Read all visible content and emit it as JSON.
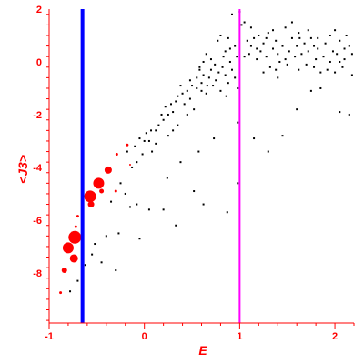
{
  "chart_data": {
    "type": "scatter",
    "xlabel": "E",
    "ylabel": "<J3>",
    "xlim": [
      -1.0,
      2.2
    ],
    "ylim": [
      -9.9,
      2.0
    ],
    "x_ticks": [
      -1,
      0,
      1,
      2
    ],
    "y_ticks": [
      2,
      0,
      -2,
      -4,
      -6,
      -8
    ],
    "grid": false,
    "colors": {
      "axis": "#ff0000",
      "text": "#ff0000",
      "black_points": "#000000",
      "red_points": "#ff0000",
      "blue_line": "#0000ff",
      "magenta_line": "#ff00ff"
    },
    "vertical_lines": [
      {
        "x": -0.65,
        "color": "#0000ff"
      },
      {
        "x": 1.0,
        "color": "#ff00ff"
      }
    ],
    "series": [
      {
        "color": "#000000",
        "marker": "small-dot",
        "points": [
          [
            -0.78,
            -8.7
          ],
          [
            -0.7,
            -8.3
          ],
          [
            -0.62,
            -7.7
          ],
          [
            -0.55,
            -7.3
          ],
          [
            -0.3,
            -7.9
          ],
          [
            -0.45,
            -7.6
          ],
          [
            -0.4,
            -6.6
          ],
          [
            -0.27,
            -6.5
          ],
          [
            -0.52,
            -6.9
          ],
          [
            -0.65,
            -7.4
          ],
          [
            -0.15,
            -5.5
          ],
          [
            -0.08,
            -5.4
          ],
          [
            -0.2,
            -5.0
          ],
          [
            -0.35,
            -5.3
          ],
          [
            -0.25,
            -4.6
          ],
          [
            -0.05,
            -6.7
          ],
          [
            0.05,
            -5.6
          ],
          [
            0.2,
            -5.6
          ],
          [
            0.33,
            -6.2
          ],
          [
            0.52,
            -4.9
          ],
          [
            0.62,
            -5.4
          ],
          [
            0.87,
            -5.7
          ],
          [
            0.98,
            -4.6
          ],
          [
            0.24,
            -4.4
          ],
          [
            0.38,
            -3.8
          ],
          [
            0.57,
            -3.4
          ],
          [
            0.73,
            -2.9
          ],
          [
            0.98,
            -2.3
          ],
          [
            1.15,
            -2.9
          ],
          [
            1.3,
            -3.4
          ],
          [
            1.45,
            -2.8
          ],
          [
            1.6,
            -1.8
          ],
          [
            1.75,
            -1.1
          ],
          [
            1.85,
            -1.0
          ],
          [
            2.05,
            -1.9
          ],
          [
            2.15,
            -2.0
          ],
          [
            -0.18,
            -3.4
          ],
          [
            -0.1,
            -3.2
          ],
          [
            -0.05,
            -2.9
          ],
          [
            0.0,
            -3.0
          ],
          [
            0.05,
            -3.0
          ],
          [
            0.08,
            -3.4
          ],
          [
            0.12,
            -3.1
          ],
          [
            -0.08,
            -3.8
          ],
          [
            -0.13,
            -4.0
          ],
          [
            0.02,
            -2.7
          ],
          [
            0.07,
            -2.6
          ],
          [
            0.15,
            -2.4
          ],
          [
            0.2,
            -2.2
          ],
          [
            0.25,
            -2.0
          ],
          [
            0.18,
            -2.0
          ],
          [
            0.3,
            -1.9
          ],
          [
            0.22,
            -1.7
          ],
          [
            0.28,
            -1.6
          ],
          [
            0.33,
            -1.5
          ],
          [
            0.35,
            -1.3
          ],
          [
            0.4,
            -1.2
          ],
          [
            0.45,
            -1.1
          ],
          [
            0.38,
            -0.9
          ],
          [
            0.42,
            -1.6
          ],
          [
            0.48,
            -1.4
          ],
          [
            0.5,
            -0.9
          ],
          [
            0.55,
            -1.0
          ],
          [
            0.52,
            -1.8
          ],
          [
            0.6,
            -0.8
          ],
          [
            0.62,
            -0.5
          ],
          [
            0.65,
            -1.2
          ],
          [
            0.68,
            -0.6
          ],
          [
            0.7,
            -0.3
          ],
          [
            0.72,
            -0.9
          ],
          [
            0.75,
            -0.7
          ],
          [
            0.78,
            -0.4
          ],
          [
            0.8,
            -1.1
          ],
          [
            0.82,
            -0.2
          ],
          [
            0.85,
            -0.5
          ],
          [
            0.88,
            -0.8
          ],
          [
            0.9,
            0.0
          ],
          [
            0.92,
            -0.3
          ],
          [
            0.95,
            -0.6
          ],
          [
            0.97,
            0.2
          ],
          [
            0.62,
            0.0
          ],
          [
            0.65,
            0.3
          ],
          [
            0.58,
            -0.3
          ],
          [
            0.55,
            -0.6
          ],
          [
            0.58,
            -0.2
          ],
          [
            0.77,
            0.8
          ],
          [
            0.8,
            1.0
          ],
          [
            0.85,
            0.4
          ],
          [
            0.88,
            0.9
          ],
          [
            0.9,
            0.5
          ],
          [
            0.95,
            0.6
          ],
          [
            1.0,
            1.9
          ],
          [
            1.02,
            1.4
          ],
          [
            1.05,
            1.5
          ],
          [
            1.08,
            0.8
          ],
          [
            1.1,
            0.3
          ],
          [
            1.12,
            0.6
          ],
          [
            1.15,
            0.9
          ],
          [
            1.18,
            0.1
          ],
          [
            1.2,
            1.0
          ],
          [
            1.22,
            0.4
          ],
          [
            1.25,
            0.7
          ],
          [
            1.28,
            0.2
          ],
          [
            1.3,
            1.1
          ],
          [
            1.32,
            -0.2
          ],
          [
            1.35,
            0.5
          ],
          [
            1.38,
            0.8
          ],
          [
            1.4,
            0.3
          ],
          [
            1.42,
            0.0
          ],
          [
            1.45,
            0.6
          ],
          [
            1.48,
            1.3
          ],
          [
            1.5,
            -0.1
          ],
          [
            1.52,
            0.4
          ],
          [
            1.55,
            0.9
          ],
          [
            1.58,
            0.2
          ],
          [
            1.6,
            0.6
          ],
          [
            1.62,
            -0.3
          ],
          [
            1.65,
            0.3
          ],
          [
            1.68,
            0.7
          ],
          [
            1.7,
            -0.1
          ],
          [
            1.72,
            0.4
          ],
          [
            1.75,
            0.9
          ],
          [
            1.78,
            -0.2
          ],
          [
            1.8,
            0.1
          ],
          [
            1.82,
            0.5
          ],
          [
            1.85,
            -0.4
          ],
          [
            1.88,
            0.2
          ],
          [
            1.9,
            0.7
          ],
          [
            1.92,
            -0.3
          ],
          [
            1.95,
            0.0
          ],
          [
            1.98,
            0.4
          ],
          [
            2.0,
            -0.4
          ],
          [
            2.02,
            0.3
          ],
          [
            2.05,
            0.8
          ],
          [
            2.08,
            -0.2
          ],
          [
            2.1,
            0.1
          ],
          [
            2.12,
            1.0
          ],
          [
            2.15,
            0.6
          ],
          [
            2.18,
            -0.5
          ],
          [
            2.18,
            0.3
          ],
          [
            1.12,
            1.3
          ],
          [
            1.18,
            0.5
          ],
          [
            1.25,
            -0.4
          ],
          [
            1.35,
            1.2
          ],
          [
            1.48,
            0.1
          ],
          [
            1.55,
            1.5
          ],
          [
            1.63,
            0.9
          ],
          [
            1.72,
            1.2
          ],
          [
            1.82,
            0.9
          ],
          [
            1.95,
            1.0
          ],
          [
            2.05,
            0.0
          ],
          [
            2.1,
            0.5
          ],
          [
            1.4,
            -0.6
          ],
          [
            0.98,
            -1.0
          ],
          [
            0.86,
            -1.3
          ],
          [
            0.45,
            -2.0
          ],
          [
            0.35,
            -2.4
          ],
          [
            0.3,
            -2.6
          ],
          [
            0.12,
            -2.6
          ],
          [
            0.25,
            -2.8
          ],
          [
            -0.02,
            -3.5
          ],
          [
            0.92,
            1.8
          ],
          [
            1.05,
            0.2
          ],
          [
            1.28,
            0.9
          ],
          [
            1.38,
            -0.3
          ],
          [
            1.62,
            1.1
          ],
          [
            1.78,
            0.6
          ],
          [
            2.0,
            1.2
          ],
          [
            0.7,
            0.1
          ],
          [
            0.74,
            -0.1
          ],
          [
            0.83,
            0.2
          ],
          [
            0.6,
            -1.1
          ],
          [
            0.48,
            -0.7
          ],
          [
            0.66,
            -0.9
          ]
        ]
      },
      {
        "color": "#ff0000",
        "marker": "sized-circle",
        "points": [
          {
            "x": -0.88,
            "y": -8.75,
            "r": 1.5
          },
          {
            "x": -0.84,
            "y": -7.9,
            "r": 3
          },
          {
            "x": -0.8,
            "y": -7.05,
            "r": 6
          },
          {
            "x": -0.73,
            "y": -6.65,
            "r": 7
          },
          {
            "x": -0.74,
            "y": -7.45,
            "r": 4.5
          },
          {
            "x": -0.72,
            "y": -6.25,
            "r": 1.5
          },
          {
            "x": -0.7,
            "y": -5.85,
            "r": 1.5
          },
          {
            "x": -0.65,
            "y": -5.5,
            "r": 1.5
          },
          {
            "x": -0.57,
            "y": -5.1,
            "r": 6.5
          },
          {
            "x": -0.56,
            "y": -5.4,
            "r": 3.5
          },
          {
            "x": -0.48,
            "y": -4.6,
            "r": 6
          },
          {
            "x": -0.45,
            "y": -4.9,
            "r": 2.5
          },
          {
            "x": -0.38,
            "y": -4.1,
            "r": 4
          },
          {
            "x": -0.3,
            "y": -4.9,
            "r": 1.5
          },
          {
            "x": -0.29,
            "y": -3.5,
            "r": 1.5
          },
          {
            "x": -0.18,
            "y": -3.15,
            "r": 1.5
          },
          {
            "x": -0.15,
            "y": -3.9,
            "r": 1
          }
        ]
      }
    ]
  }
}
